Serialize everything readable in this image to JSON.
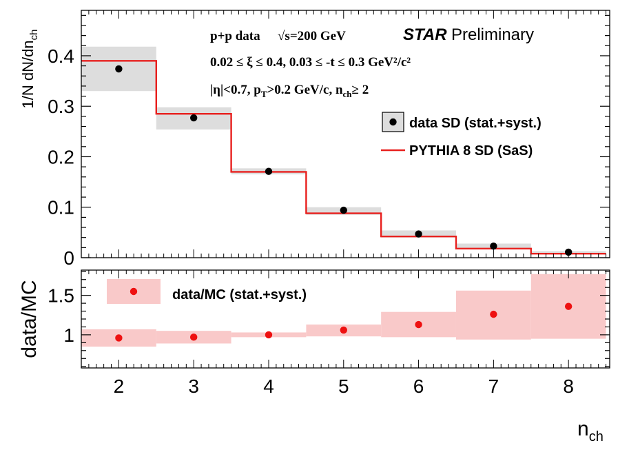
{
  "chart_data": [
    {
      "type": "bar",
      "panel": "top",
      "ylabel": "1/N dN/dn_ch",
      "ylim": [
        0,
        0.49
      ],
      "y_ticks": [
        "0",
        "0.1",
        "0.2",
        "0.3",
        "0.4"
      ],
      "bins": [
        2,
        3,
        4,
        5,
        6,
        7,
        8
      ],
      "series": [
        {
          "name": "data SD (stat.+syst.)",
          "values": [
            0.374,
            0.277,
            0.171,
            0.094,
            0.047,
            0.023,
            0.011
          ],
          "syst_low": [
            0.33,
            0.254,
            0.165,
            0.085,
            0.04,
            0.018,
            0.007
          ],
          "syst_high": [
            0.418,
            0.298,
            0.177,
            0.1,
            0.054,
            0.028,
            0.013
          ]
        },
        {
          "name": "PYTHIA 8 SD (SaS)",
          "values": [
            0.39,
            0.285,
            0.17,
            0.088,
            0.042,
            0.018,
            0.008
          ]
        }
      ],
      "annotations": {
        "line1a": "p+p data",
        "line1b": "√s=200 GeV",
        "star": "STAR",
        "preliminary": "Preliminary",
        "line2": "0.02  ≤  ξ  ≤ 0.4, 0.03  ≤ -t  ≤ 0.3 GeV²/c²",
        "line3": "|η|<0.7, p_T>0.2 GeV/c, n_ch≥ 2"
      }
    },
    {
      "type": "scatter",
      "panel": "bottom",
      "ylabel": "data/MC",
      "ylim": [
        0.58,
        1.82
      ],
      "y_ticks": [
        "1",
        "1.5"
      ],
      "xlabel": "n_ch",
      "x_ticks": [
        "2",
        "3",
        "4",
        "5",
        "6",
        "7",
        "8"
      ],
      "series": [
        {
          "name": "data/MC (stat.+syst.)",
          "x": [
            2,
            3,
            4,
            5,
            6,
            7,
            8
          ],
          "values": [
            0.96,
            0.97,
            1.0,
            1.06,
            1.13,
            1.26,
            1.36
          ],
          "band_low": [
            0.85,
            0.89,
            0.97,
            0.98,
            0.97,
            0.94,
            0.95
          ],
          "band_high": [
            1.07,
            1.05,
            1.03,
            1.13,
            1.29,
            1.56,
            1.77
          ]
        }
      ]
    }
  ],
  "colors": {
    "data_marker": "#000000",
    "syst_band": "#dddddd",
    "mc_line": "#e8201e",
    "ratio_band": "#f9c9c9",
    "ratio_marker": "#ee1111"
  }
}
